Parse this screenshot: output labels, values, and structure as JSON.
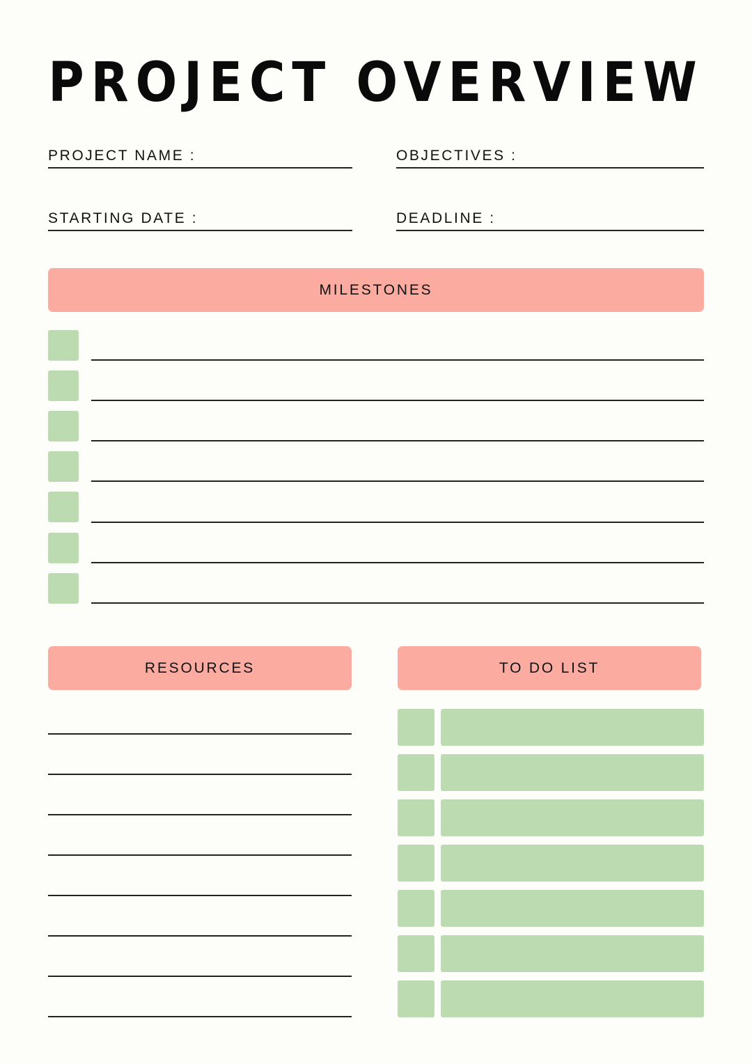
{
  "title": "PROJECT OVERVIEW",
  "fields": {
    "project_name": "PROJECT NAME :",
    "objectives": "OBJECTIVES :",
    "starting_date": "STARTING DATE :",
    "deadline": "DEADLINE :"
  },
  "sections": {
    "milestones": "MILESTONES",
    "resources": "RESOURCES",
    "todo": "TO DO LIST"
  },
  "colors": {
    "background": "#fdfdfa",
    "header": "#fcaba1",
    "box": "#bddbb0",
    "line": "#222222"
  }
}
